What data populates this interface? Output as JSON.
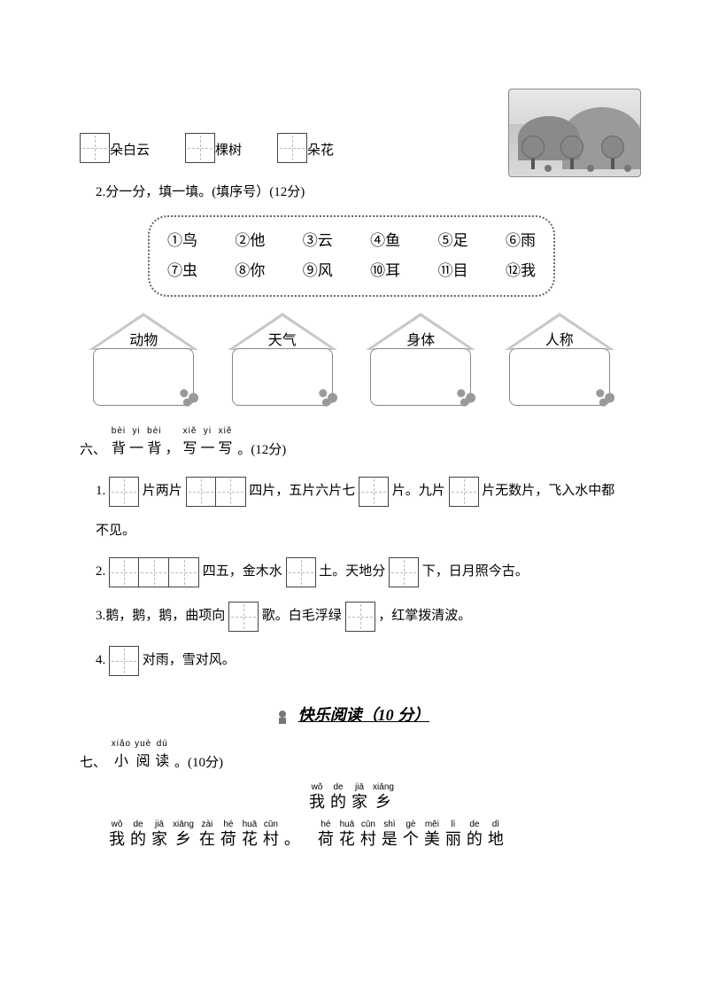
{
  "row1": {
    "items": [
      {
        "label": "朵白云"
      },
      {
        "label": "棵树"
      },
      {
        "label": "朵花"
      }
    ]
  },
  "q2": {
    "label": "2.分一分，填一填。(填序号）(12分)",
    "bank_row1": [
      "①鸟",
      "②他",
      "③云",
      "④鱼",
      "⑤足",
      "⑥雨"
    ],
    "bank_row2": [
      "⑦虫",
      "⑧你",
      "⑨风",
      "⑩耳",
      "⑪目",
      "⑫我"
    ],
    "houses": [
      "动物",
      "天气",
      "身体",
      "人称"
    ]
  },
  "section6": {
    "num": "六、",
    "pinyin": [
      {
        "py": "bèi",
        "ch": "背"
      },
      {
        "py": "yi",
        "ch": "一"
      },
      {
        "py": "bèi",
        "ch": "背"
      },
      {
        "py": "",
        "ch": "，"
      },
      {
        "py": "xiě",
        "ch": "写"
      },
      {
        "py": "yi",
        "ch": "一"
      },
      {
        "py": "xiě",
        "ch": "写"
      }
    ],
    "tail": " 。(12分)",
    "line1_a": "1. ",
    "line1_b": "片两片",
    "line1_c": "四片，五片六片七",
    "line1_d": "片。九片",
    "line1_e": "片无数片，飞入水中都",
    "line1_cont": "不见。",
    "line2_a": "2. ",
    "line2_b": "四五，金木水",
    "line2_c": "土。天地分",
    "line2_d": "下，日月照今古。",
    "line3_a": "3.鹅，鹅，鹅，曲项向",
    "line3_b": "歌。白毛浮绿",
    "line3_c": "，红掌拨清波。",
    "line4_a": "4. ",
    "line4_b": "对雨，雪对风。"
  },
  "reading": {
    "header": "快乐阅读（10 分）",
    "section_num": "七、",
    "section_pinyin": [
      {
        "py": "xiǎo",
        "ch": "小"
      },
      {
        "py": "yuè",
        "ch": "阅"
      },
      {
        "py": "dú",
        "ch": "读"
      }
    ],
    "section_tail": " 。(10分)",
    "title": [
      {
        "py": "wǒ",
        "ch": "我"
      },
      {
        "py": "de",
        "ch": "的"
      },
      {
        "py": "jiā",
        "ch": "家"
      },
      {
        "py": "xiāng",
        "ch": "乡"
      }
    ],
    "para1": [
      {
        "py": "wǒ",
        "ch": "我"
      },
      {
        "py": "de",
        "ch": "的"
      },
      {
        "py": "jiā",
        "ch": "家"
      },
      {
        "py": "xiāng",
        "ch": "乡"
      },
      {
        "py": "zài",
        "ch": "在"
      },
      {
        "py": "hé",
        "ch": "荷"
      },
      {
        "py": "huā",
        "ch": "花"
      },
      {
        "py": "cūn",
        "ch": "村"
      },
      {
        "py": "",
        "ch": "。"
      },
      {
        "py": "hé",
        "ch": "荷"
      },
      {
        "py": "huā",
        "ch": "花"
      },
      {
        "py": "cūn",
        "ch": "村"
      },
      {
        "py": "shì",
        "ch": "是"
      },
      {
        "py": "gè",
        "ch": "个"
      },
      {
        "py": "měi",
        "ch": "美"
      },
      {
        "py": "lì",
        "ch": "丽"
      },
      {
        "py": "de",
        "ch": "的"
      },
      {
        "py": "dì",
        "ch": "地"
      }
    ]
  },
  "colors": {
    "text": "#000000",
    "border": "#666666",
    "bg": "#ffffff"
  }
}
